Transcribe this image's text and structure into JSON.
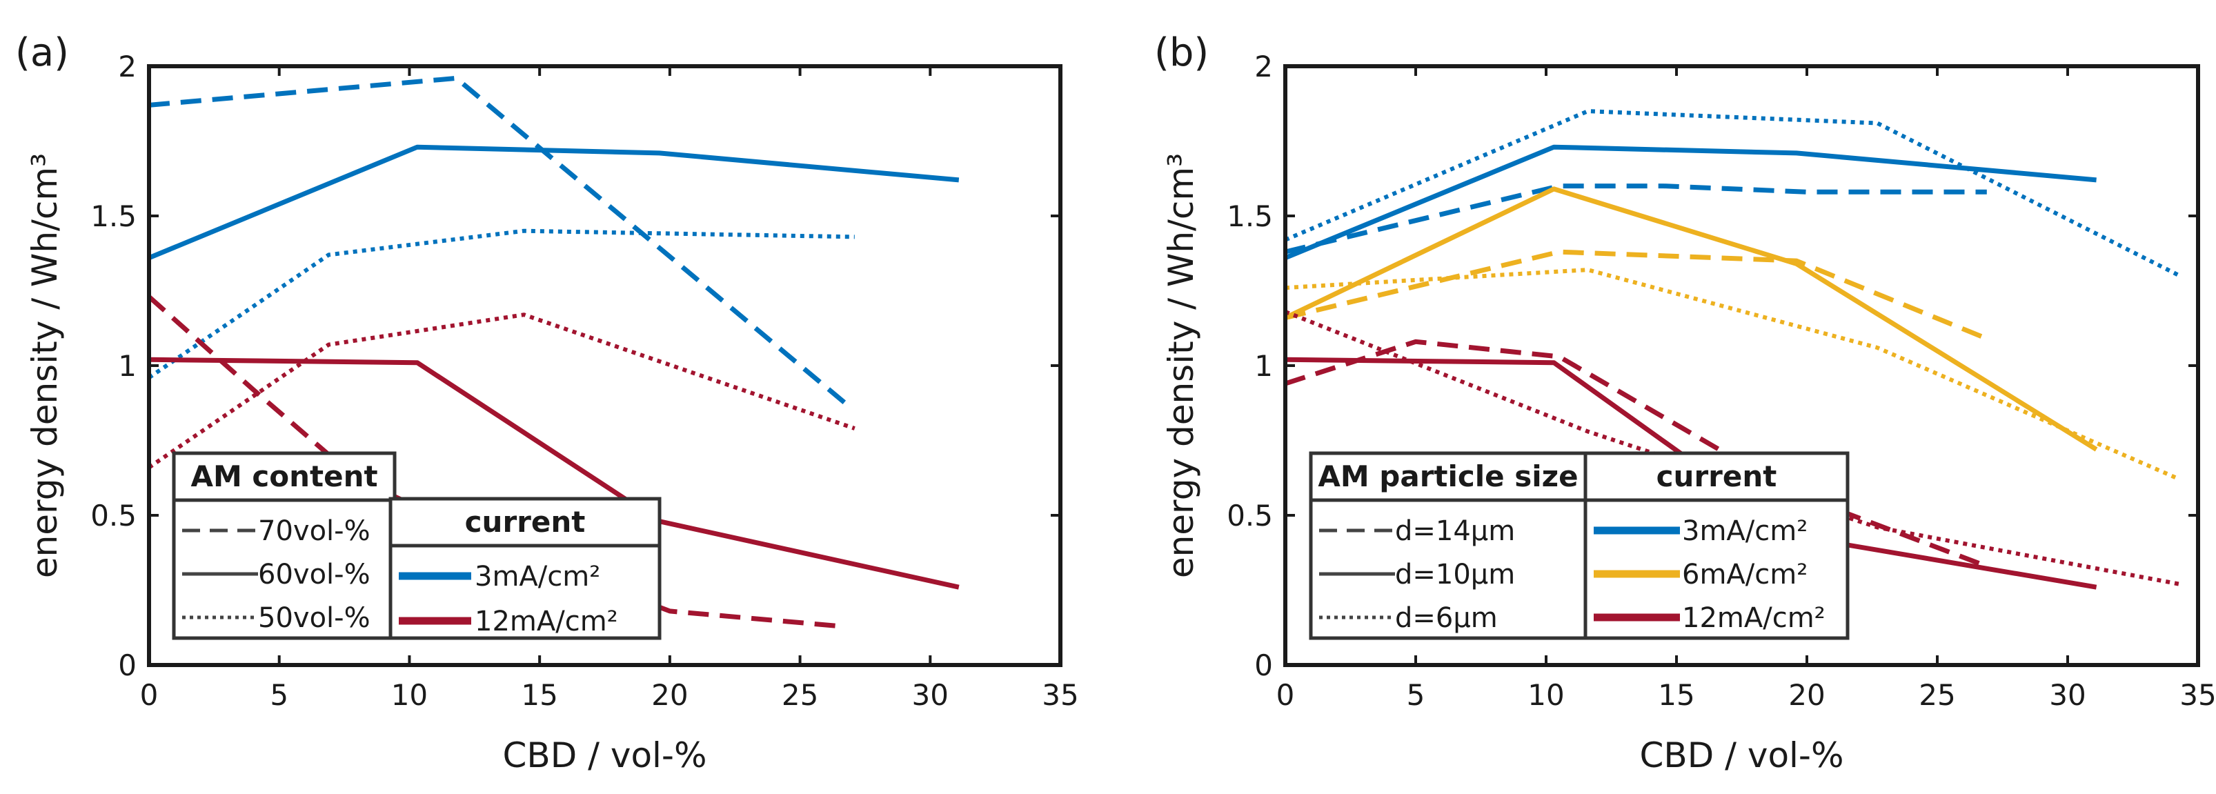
{
  "chart_data": [
    {
      "type": "line",
      "panel_label": "(a)",
      "xlabel": "CBD / vol-%",
      "ylabel": "energy density / Wh/cm³",
      "xlim": [
        0,
        35
      ],
      "ylim": [
        0,
        2
      ],
      "xticks": [
        "0",
        "5",
        "10",
        "15",
        "20",
        "25",
        "30",
        "35"
      ],
      "yticks": [
        "0",
        "0.5",
        "1",
        "1.5",
        "2"
      ],
      "colors": {
        "3mA": "#0072bd",
        "12mA": "#a2142f"
      },
      "series": [
        {
          "name": "70vol-% 3mA/cm²",
          "color": "#0072bd",
          "dash": "dashed",
          "x": [
            0,
            11.8,
            26.8
          ],
          "y": [
            1.87,
            1.96,
            0.87
          ]
        },
        {
          "name": "60vol-% 3mA/cm²",
          "color": "#0072bd",
          "dash": "solid",
          "x": [
            0,
            10.3,
            19.6,
            31.1
          ],
          "y": [
            1.36,
            1.73,
            1.71,
            1.62
          ]
        },
        {
          "name": "50vol-% 3mA/cm²",
          "color": "#0072bd",
          "dash": "dotted",
          "x": [
            0,
            6.9,
            14.4,
            27.1
          ],
          "y": [
            0.96,
            1.37,
            1.45,
            1.43
          ]
        },
        {
          "name": "70vol-% 12mA/cm²",
          "color": "#a2142f",
          "dash": "dashed",
          "x": [
            0,
            4.0,
            8.0,
            14.0,
            20.0,
            26.5
          ],
          "y": [
            1.23,
            0.92,
            0.62,
            0.38,
            0.18,
            0.13
          ]
        },
        {
          "name": "60vol-% 12mA/cm²",
          "color": "#a2142f",
          "dash": "solid",
          "x": [
            0,
            10.3,
            19.6,
            31.1
          ],
          "y": [
            1.02,
            1.01,
            0.48,
            0.26
          ]
        },
        {
          "name": "50vol-% 12mA/cm²",
          "color": "#a2142f",
          "dash": "dotted",
          "x": [
            0,
            6.9,
            14.4,
            27.1
          ],
          "y": [
            0.66,
            1.07,
            1.17,
            0.79
          ]
        }
      ],
      "legend_left": {
        "title": "AM content",
        "entries": [
          {
            "label": "70vol-%",
            "dash": "dashed"
          },
          {
            "label": "60vol-%",
            "dash": "solid"
          },
          {
            "label": "50vol-%",
            "dash": "dotted"
          }
        ]
      },
      "legend_right": {
        "title": "current",
        "entries": [
          {
            "label": "3mA/cm²",
            "color": "#0072bd"
          },
          {
            "label": "12mA/cm²",
            "color": "#a2142f"
          }
        ]
      }
    },
    {
      "type": "line",
      "panel_label": "(b)",
      "xlabel": "CBD / vol-%",
      "ylabel": "energy density / Wh/cm³",
      "xlim": [
        0,
        35
      ],
      "ylim": [
        0,
        2
      ],
      "xticks": [
        "0",
        "5",
        "10",
        "15",
        "20",
        "25",
        "30",
        "35"
      ],
      "yticks": [
        "0",
        "0.5",
        "1",
        "1.5",
        "2"
      ],
      "colors": {
        "3mA": "#0072bd",
        "6mA": "#edb120",
        "12mA": "#a2142f"
      },
      "series": [
        {
          "name": "d=14µm 3mA/cm²",
          "color": "#0072bd",
          "dash": "dashed",
          "x": [
            0,
            10.5,
            14.5,
            20.0,
            26.9
          ],
          "y": [
            1.38,
            1.6,
            1.6,
            1.58,
            1.58
          ]
        },
        {
          "name": "d=10µm 3mA/cm²",
          "color": "#0072bd",
          "dash": "solid",
          "x": [
            0,
            10.3,
            19.6,
            31.1
          ],
          "y": [
            1.36,
            1.73,
            1.71,
            1.62
          ]
        },
        {
          "name": "d=6µm 3mA/cm²",
          "color": "#0072bd",
          "dash": "dotted",
          "x": [
            0,
            11.6,
            22.7,
            34.3
          ],
          "y": [
            1.42,
            1.85,
            1.81,
            1.3
          ]
        },
        {
          "name": "d=14µm 6mA/cm²",
          "color": "#edb120",
          "dash": "dashed",
          "x": [
            0,
            10.5,
            19.6,
            26.9
          ],
          "y": [
            1.16,
            1.38,
            1.35,
            1.09
          ]
        },
        {
          "name": "d=10µm 6mA/cm²",
          "color": "#edb120",
          "dash": "solid",
          "x": [
            0,
            10.3,
            19.6,
            31.1
          ],
          "y": [
            1.16,
            1.59,
            1.34,
            0.72
          ]
        },
        {
          "name": "d=6µm 6mA/cm²",
          "color": "#edb120",
          "dash": "dotted",
          "x": [
            0,
            11.6,
            22.7,
            34.3
          ],
          "y": [
            1.26,
            1.32,
            1.06,
            0.62
          ]
        },
        {
          "name": "d=14µm 12mA/cm²",
          "color": "#a2142f",
          "dash": "dashed",
          "x": [
            0,
            5.0,
            10.5,
            19.6,
            26.9
          ],
          "y": [
            0.94,
            1.08,
            1.03,
            0.57,
            0.33
          ]
        },
        {
          "name": "d=10µm 12mA/cm²",
          "color": "#a2142f",
          "dash": "solid",
          "x": [
            0,
            10.3,
            19.6,
            31.1
          ],
          "y": [
            1.02,
            1.01,
            0.43,
            0.26
          ]
        },
        {
          "name": "d=6µm 12mA/cm²",
          "color": "#a2142f",
          "dash": "dotted",
          "x": [
            0,
            11.6,
            22.7,
            34.3
          ],
          "y": [
            1.18,
            0.78,
            0.46,
            0.27
          ]
        }
      ],
      "legend_left": {
        "title": "AM particle size",
        "entries": [
          {
            "label": "d=14µm",
            "dash": "dashed"
          },
          {
            "label": "d=10µm",
            "dash": "solid"
          },
          {
            "label": "d=6µm",
            "dash": "dotted"
          }
        ]
      },
      "legend_right": {
        "title": "current",
        "entries": [
          {
            "label": "3mA/cm²",
            "color": "#0072bd"
          },
          {
            "label": "6mA/cm²",
            "color": "#edb120"
          },
          {
            "label": "12mA/cm²",
            "color": "#a2142f"
          }
        ]
      }
    }
  ]
}
